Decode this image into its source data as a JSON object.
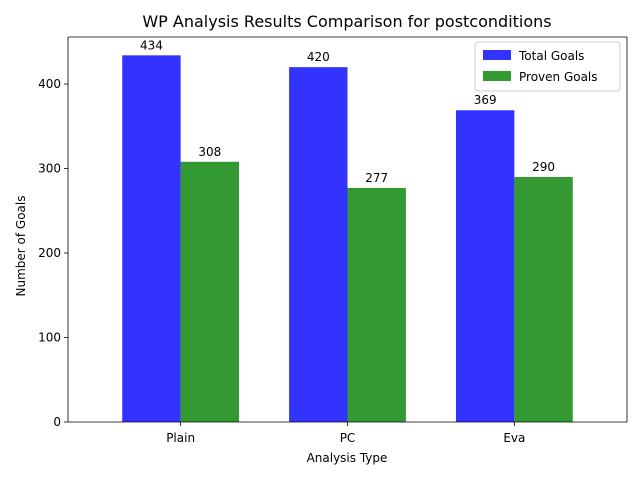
{
  "chart_data": {
    "type": "bar",
    "title": "WP Analysis Results Comparison for postconditions",
    "xlabel": "Analysis Type",
    "ylabel": "Number of Goals",
    "categories": [
      "Plain",
      "PC",
      "Eva"
    ],
    "series": [
      {
        "name": "Total Goals",
        "values": [
          434,
          420,
          369
        ],
        "color": "#0000ff",
        "opacity": 0.8
      },
      {
        "name": "Proven Goals",
        "values": [
          308,
          277,
          290
        ],
        "color": "#008000",
        "opacity": 0.8
      }
    ],
    "ylim": [
      0,
      455.7
    ],
    "yticks": [
      0,
      100,
      200,
      300,
      400
    ],
    "grid": false,
    "legend_position": "top-right"
  }
}
